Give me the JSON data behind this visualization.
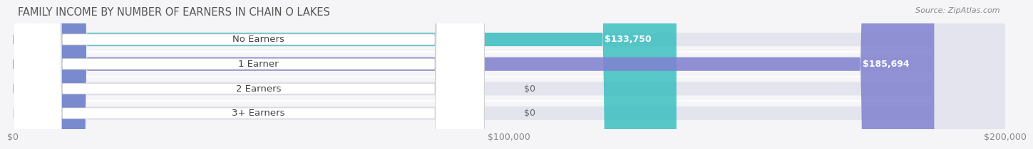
{
  "title": "FAMILY INCOME BY NUMBER OF EARNERS IN CHAIN O LAKES",
  "source": "Source: ZipAtlas.com",
  "categories": [
    "No Earners",
    "1 Earner",
    "2 Earners",
    "3+ Earners"
  ],
  "values": [
    133750,
    185694,
    0,
    0
  ],
  "bar_colors": [
    "#3bbfbf",
    "#8080d0",
    "#f08098",
    "#f0c080"
  ],
  "label_colors": [
    "#3bbfbf",
    "#7878cc",
    "#f08098",
    "#f0c080"
  ],
  "xlim": [
    0,
    200000
  ],
  "xticks": [
    0,
    100000,
    200000
  ],
  "xtick_labels": [
    "$0",
    "$100,000",
    "$200,000"
  ],
  "value_labels": [
    "$133,750",
    "$185,694",
    "$0",
    "$0"
  ],
  "bar_height": 0.55,
  "background_color": "#f0f0f0",
  "bar_bg_color": "#e8e8f0",
  "title_fontsize": 10.5,
  "label_fontsize": 9.5,
  "value_fontsize": 9,
  "tick_fontsize": 9,
  "source_fontsize": 8
}
